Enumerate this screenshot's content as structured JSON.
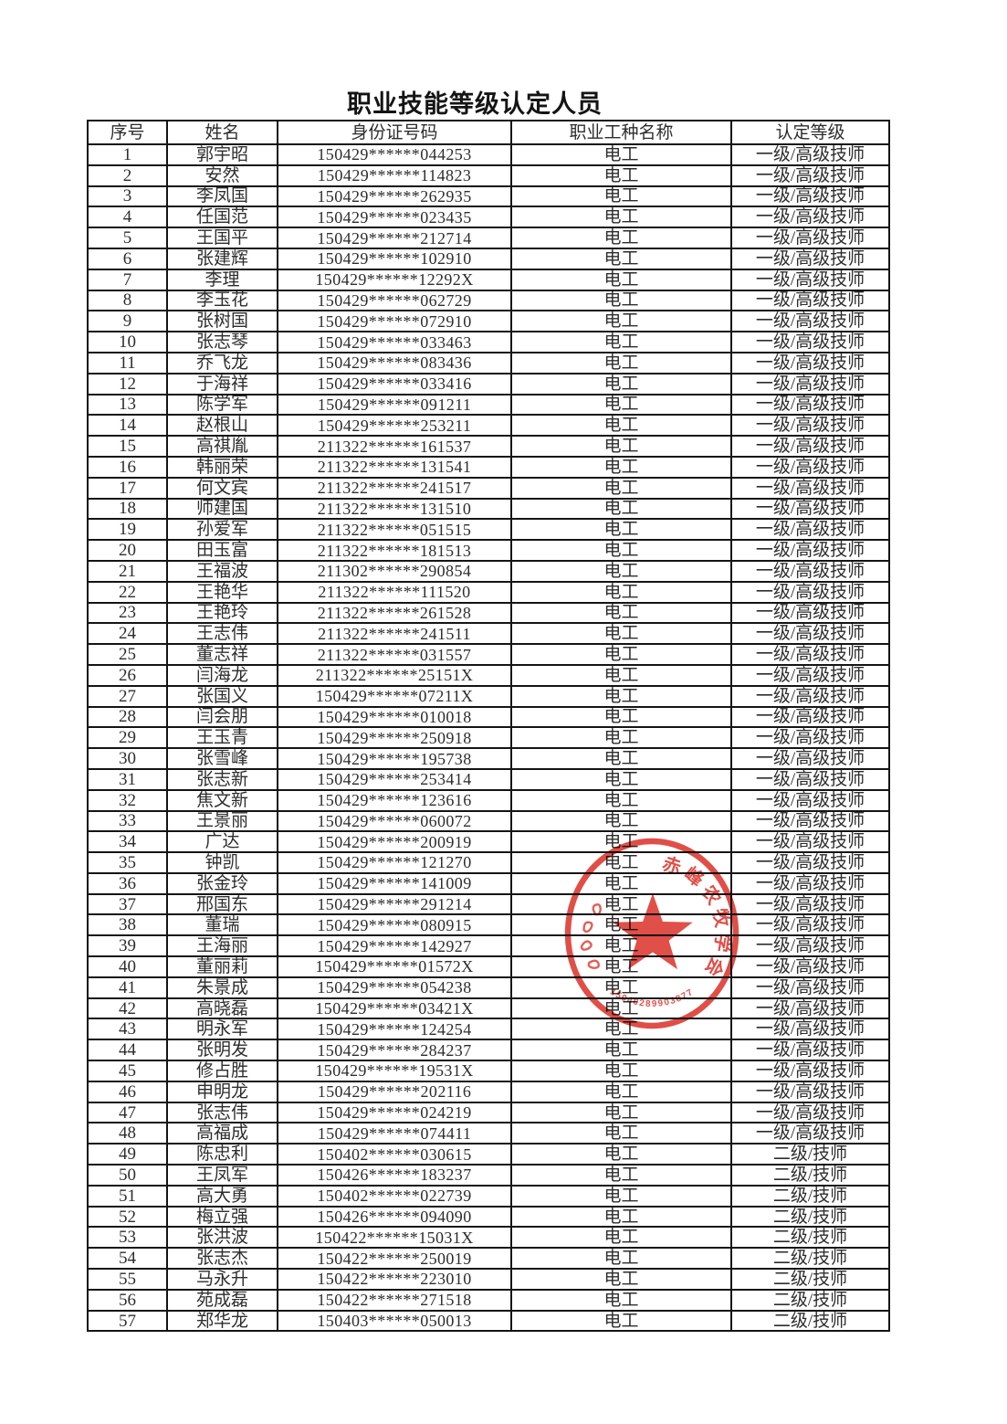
{
  "page": {
    "title": "职业技能等级认定人员"
  },
  "table": {
    "headers": [
      "序号",
      "姓名",
      "身份证号码",
      "职业工种名称",
      "认定等级"
    ],
    "rows": [
      [
        "1",
        "郭宇昭",
        "150429******044253",
        "电工",
        "一级/高级技师"
      ],
      [
        "2",
        "安然",
        "150429******114823",
        "电工",
        "一级/高级技师"
      ],
      [
        "3",
        "李凤国",
        "150429******262935",
        "电工",
        "一级/高级技师"
      ],
      [
        "4",
        "任国范",
        "150429******023435",
        "电工",
        "一级/高级技师"
      ],
      [
        "5",
        "王国平",
        "150429******212714",
        "电工",
        "一级/高级技师"
      ],
      [
        "6",
        "张建辉",
        "150429******102910",
        "电工",
        "一级/高级技师"
      ],
      [
        "7",
        "李理",
        "150429******12292X",
        "电工",
        "一级/高级技师"
      ],
      [
        "8",
        "李玉花",
        "150429******062729",
        "电工",
        "一级/高级技师"
      ],
      [
        "9",
        "张树国",
        "150429******072910",
        "电工",
        "一级/高级技师"
      ],
      [
        "10",
        "张志琴",
        "150429******033463",
        "电工",
        "一级/高级技师"
      ],
      [
        "11",
        "乔飞龙",
        "150429******083436",
        "电工",
        "一级/高级技师"
      ],
      [
        "12",
        "于海祥",
        "150429******033416",
        "电工",
        "一级/高级技师"
      ],
      [
        "13",
        "陈学军",
        "150429******091211",
        "电工",
        "一级/高级技师"
      ],
      [
        "14",
        "赵根山",
        "150429******253211",
        "电工",
        "一级/高级技师"
      ],
      [
        "15",
        "高祺胤",
        "211322******161537",
        "电工",
        "一级/高级技师"
      ],
      [
        "16",
        "韩丽荣",
        "211322******131541",
        "电工",
        "一级/高级技师"
      ],
      [
        "17",
        "何文宾",
        "211322******241517",
        "电工",
        "一级/高级技师"
      ],
      [
        "18",
        "师建国",
        "211322******131510",
        "电工",
        "一级/高级技师"
      ],
      [
        "19",
        "孙爱军",
        "211322******051515",
        "电工",
        "一级/高级技师"
      ],
      [
        "20",
        "田玉富",
        "211322******181513",
        "电工",
        "一级/高级技师"
      ],
      [
        "21",
        "王福波",
        "211302******290854",
        "电工",
        "一级/高级技师"
      ],
      [
        "22",
        "王艳华",
        "211322******111520",
        "电工",
        "一级/高级技师"
      ],
      [
        "23",
        "王艳玲",
        "211322******261528",
        "电工",
        "一级/高级技师"
      ],
      [
        "24",
        "王志伟",
        "211322******241511",
        "电工",
        "一级/高级技师"
      ],
      [
        "25",
        "董志祥",
        "211322******031557",
        "电工",
        "一级/高级技师"
      ],
      [
        "26",
        "闫海龙",
        "211322******25151X",
        "电工",
        "一级/高级技师"
      ],
      [
        "27",
        "张国义",
        "150429******07211X",
        "电工",
        "一级/高级技师"
      ],
      [
        "28",
        "闫会朋",
        "150429******010018",
        "电工",
        "一级/高级技师"
      ],
      [
        "29",
        "王玉青",
        "150429******250918",
        "电工",
        "一级/高级技师"
      ],
      [
        "30",
        "张雪峰",
        "150429******195738",
        "电工",
        "一级/高级技师"
      ],
      [
        "31",
        "张志新",
        "150429******253414",
        "电工",
        "一级/高级技师"
      ],
      [
        "32",
        "焦文新",
        "150429******123616",
        "电工",
        "一级/高级技师"
      ],
      [
        "33",
        "王景丽",
        "150429******060072",
        "电工",
        "一级/高级技师"
      ],
      [
        "34",
        "广达",
        "150429******200919",
        "电工",
        "一级/高级技师"
      ],
      [
        "35",
        "钟凯",
        "150429******121270",
        "电工",
        "一级/高级技师"
      ],
      [
        "36",
        "张金玲",
        "150429******141009",
        "电工",
        "一级/高级技师"
      ],
      [
        "37",
        "邢国东",
        "150429******291214",
        "电工",
        "一级/高级技师"
      ],
      [
        "38",
        "董瑞",
        "150429******080915",
        "电工",
        "一级/高级技师"
      ],
      [
        "39",
        "王海丽",
        "150429******142927",
        "电工",
        "一级/高级技师"
      ],
      [
        "40",
        "董丽莉",
        "150429******01572X",
        "电工",
        "一级/高级技师"
      ],
      [
        "41",
        "朱景成",
        "150429******054238",
        "电工",
        "一级/高级技师"
      ],
      [
        "42",
        "高晓磊",
        "150429******03421X",
        "电工",
        "一级/高级技师"
      ],
      [
        "43",
        "明永军",
        "150429******124254",
        "电工",
        "一级/高级技师"
      ],
      [
        "44",
        "张明发",
        "150429******284237",
        "电工",
        "一级/高级技师"
      ],
      [
        "45",
        "修占胜",
        "150429******19531X",
        "电工",
        "一级/高级技师"
      ],
      [
        "46",
        "申明龙",
        "150429******202116",
        "电工",
        "一级/高级技师"
      ],
      [
        "47",
        "张志伟",
        "150429******024219",
        "电工",
        "一级/高级技师"
      ],
      [
        "48",
        "高福成",
        "150429******074411",
        "电工",
        "一级/高级技师"
      ],
      [
        "49",
        "陈忠利",
        "150402******030615",
        "电工",
        "二级/技师"
      ],
      [
        "50",
        "王凤军",
        "150426******183237",
        "电工",
        "二级/技师"
      ],
      [
        "51",
        "高大勇",
        "150402******022739",
        "电工",
        "二级/技师"
      ],
      [
        "52",
        "梅立强",
        "150426******094090",
        "电工",
        "二级/技师"
      ],
      [
        "53",
        "张洪波",
        "150422******15031X",
        "电工",
        "二级/技师"
      ],
      [
        "54",
        "张志杰",
        "150422******250019",
        "电工",
        "二级/技师"
      ],
      [
        "55",
        "马永升",
        "150422******223010",
        "电工",
        "二级/技师"
      ],
      [
        "56",
        "苑成磊",
        "150422******271518",
        "电工",
        "二级/技师"
      ],
      [
        "57",
        "郑华龙",
        "150403******050013",
        "电工",
        "二级/技师"
      ]
    ]
  },
  "seal": {
    "arc_text": "赤峰农牧学会",
    "serial": "15040289903877",
    "color": "#d9251c"
  }
}
